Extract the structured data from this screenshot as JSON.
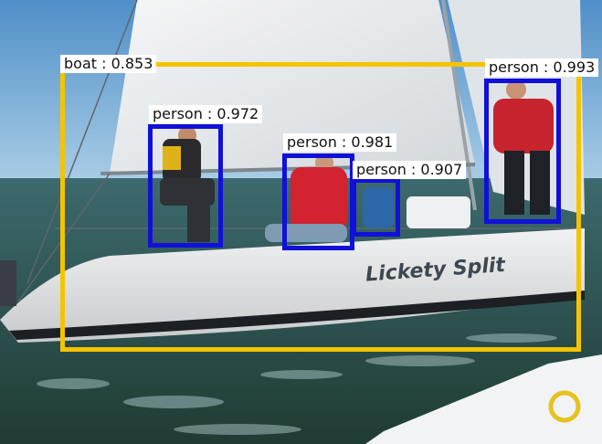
{
  "image": {
    "hull_name": "Lickety Split",
    "colors": {
      "sky": "#6fa8d6",
      "sea": "#2f4f48",
      "hull": "#e4e6e8",
      "sail": "#e9ecef",
      "person_box": "#1010d8",
      "boat_box": "#f5c400"
    }
  },
  "detections": [
    {
      "label": "boat : 0.853"
    },
    {
      "label": "person : 0.972"
    },
    {
      "label": "person : 0.981"
    },
    {
      "label": "person : 0.907"
    },
    {
      "label": "person : 0.993"
    }
  ]
}
